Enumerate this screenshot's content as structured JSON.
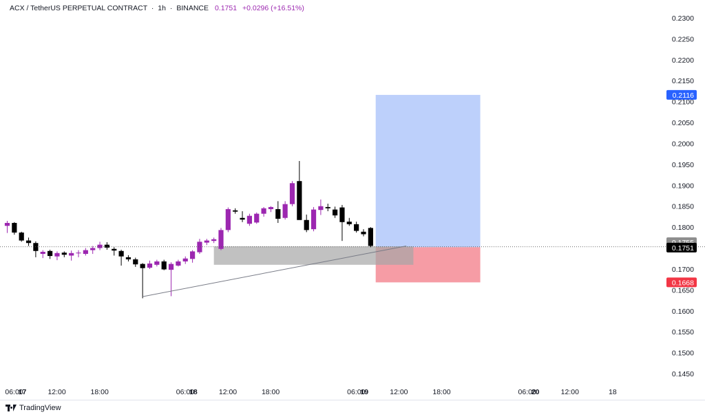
{
  "header": {
    "symbol": "ACX / TetherUS PERPETUAL CONTRACT",
    "interval": "1h",
    "exchange": "BINANCE",
    "price": "0.1751",
    "change": "+0.0296 (+16.51%)"
  },
  "footer": {
    "brand": "TradingView"
  },
  "colors": {
    "bull": "#9c27b0",
    "bear": "#000000",
    "profit_zone": "#bdd0fb",
    "loss_zone": "#f69ca5",
    "entry_zone": "#a6a6a6",
    "target_tag": "#2962ff",
    "stop_tag": "#f23645"
  },
  "chart_data": {
    "type": "candlestick",
    "ylim": [
      0.1425,
      0.2315
    ],
    "y_ticks": [
      "0.2300",
      "0.2250",
      "0.2200",
      "0.2150",
      "0.2100",
      "0.2050",
      "0.2000",
      "0.1950",
      "0.1900",
      "0.1850",
      "0.1800",
      "0.1700",
      "0.1650",
      "0.1600",
      "0.1550",
      "0.1500",
      "0.1450"
    ],
    "x_ticks": [
      {
        "i": 0,
        "label": "17",
        "bold": true
      },
      {
        "i": 6,
        "label": "06:00"
      },
      {
        "i": 12,
        "label": "12:00"
      },
      {
        "i": 18,
        "label": "18:00"
      },
      {
        "i": 24,
        "label": "18",
        "bold": true
      },
      {
        "i": 30,
        "label": "06:00"
      },
      {
        "i": 36,
        "label": "12:00"
      },
      {
        "i": 42,
        "label": "18:00"
      },
      {
        "i": 48,
        "label": "19",
        "bold": true
      },
      {
        "i": 54,
        "label": "06:00"
      },
      {
        "i": 60,
        "label": "12:00"
      },
      {
        "i": 66,
        "label": "18:00"
      },
      {
        "i": 72,
        "label": "20",
        "bold": true
      },
      {
        "i": 78,
        "label": "06:00"
      },
      {
        "i": 84,
        "label": "12:00"
      },
      {
        "i": 90,
        "label": "18"
      }
    ],
    "candles": [
      [
        0.1803,
        0.1815,
        0.1786,
        0.181
      ],
      [
        0.181,
        0.1812,
        0.1782,
        0.1787
      ],
      [
        0.1787,
        0.1789,
        0.1765,
        0.1768
      ],
      [
        0.1768,
        0.1775,
        0.1755,
        0.1762
      ],
      [
        0.1762,
        0.1766,
        0.1728,
        0.1743
      ],
      [
        0.1736,
        0.1745,
        0.1726,
        0.1741
      ],
      [
        0.1743,
        0.1746,
        0.1724,
        0.1731
      ],
      [
        0.173,
        0.1742,
        0.1721,
        0.1738
      ],
      [
        0.1739,
        0.1742,
        0.1728,
        0.1734
      ],
      [
        0.1732,
        0.1744,
        0.172,
        0.1738
      ],
      [
        0.1738,
        0.1745,
        0.1728,
        0.1739
      ],
      [
        0.1736,
        0.175,
        0.1732,
        0.1745
      ],
      [
        0.1745,
        0.1755,
        0.1736,
        0.175
      ],
      [
        0.175,
        0.1765,
        0.1745,
        0.1758
      ],
      [
        0.1758,
        0.1764,
        0.1746,
        0.1751
      ],
      [
        0.1748,
        0.1752,
        0.1732,
        0.1744
      ],
      [
        0.1743,
        0.1746,
        0.1708,
        0.173
      ],
      [
        0.1728,
        0.1733,
        0.1718,
        0.1723
      ],
      [
        0.1723,
        0.1727,
        0.1705,
        0.1711
      ],
      [
        0.1712,
        0.1714,
        0.163,
        0.1702
      ],
      [
        0.1703,
        0.172,
        0.17,
        0.1713
      ],
      [
        0.171,
        0.1722,
        0.1706,
        0.1718
      ],
      [
        0.1718,
        0.1722,
        0.1697,
        0.1699
      ],
      [
        0.1698,
        0.1716,
        0.1635,
        0.1712
      ],
      [
        0.1708,
        0.1722,
        0.1706,
        0.1718
      ],
      [
        0.1718,
        0.173,
        0.1712,
        0.1725
      ],
      [
        0.1724,
        0.1745,
        0.1715,
        0.1742
      ],
      [
        0.174,
        0.1772,
        0.1736,
        0.1765
      ],
      [
        0.1763,
        0.1772,
        0.1757,
        0.1768
      ],
      [
        0.1767,
        0.1775,
        0.1762,
        0.1771
      ],
      [
        0.1748,
        0.1798,
        0.1745,
        0.1793
      ],
      [
        0.1793,
        0.1847,
        0.1788,
        0.1843
      ],
      [
        0.184,
        0.1845,
        0.1832,
        0.1837
      ],
      [
        0.1822,
        0.1838,
        0.1812,
        0.1818
      ],
      [
        0.1808,
        0.1832,
        0.1803,
        0.1827
      ],
      [
        0.1811,
        0.1835,
        0.1808,
        0.1832
      ],
      [
        0.1832,
        0.1848,
        0.1825,
        0.1845
      ],
      [
        0.1843,
        0.185,
        0.1836,
        0.1848
      ],
      [
        0.1843,
        0.1862,
        0.181,
        0.182
      ],
      [
        0.1822,
        0.1862,
        0.1818,
        0.1855
      ],
      [
        0.1855,
        0.191,
        0.185,
        0.1905
      ],
      [
        0.191,
        0.1958,
        0.1819,
        0.1817
      ],
      [
        0.1817,
        0.183,
        0.1788,
        0.1793
      ],
      [
        0.1795,
        0.1848,
        0.179,
        0.1842
      ],
      [
        0.1841,
        0.1866,
        0.1829,
        0.185
      ],
      [
        0.1848,
        0.1856,
        0.1838,
        0.1845
      ],
      [
        0.1842,
        0.1849,
        0.1822,
        0.1828
      ],
      [
        0.1847,
        0.1853,
        0.1767,
        0.1812
      ],
      [
        0.1813,
        0.1822,
        0.1803,
        0.1807
      ],
      [
        0.1807,
        0.1813,
        0.1787,
        0.1791
      ],
      [
        0.1789,
        0.1795,
        0.1778,
        0.1783
      ],
      [
        0.1798,
        0.18,
        0.1752,
        0.1755
      ]
    ],
    "position": {
      "entry": 0.1752,
      "target": 0.2116,
      "stop": 0.1668,
      "target_label": "0.2116",
      "stop_label": "0.1668",
      "start_index": 52,
      "end_index": 66
    },
    "entry_zone": {
      "top": 0.1754,
      "bottom": 0.171,
      "start_index": 29,
      "end_index": 57
    },
    "trendline": {
      "from": [
        19,
        0.1634
      ],
      "to": [
        56,
        0.1755
      ]
    },
    "last_close_line": 0.1753,
    "price_tags": [
      {
        "label": "0.1755",
        "value": 0.1764,
        "color": "#8e8e8e"
      },
      {
        "label": "0.1751",
        "value": 0.1751,
        "color": "#000000"
      }
    ]
  }
}
